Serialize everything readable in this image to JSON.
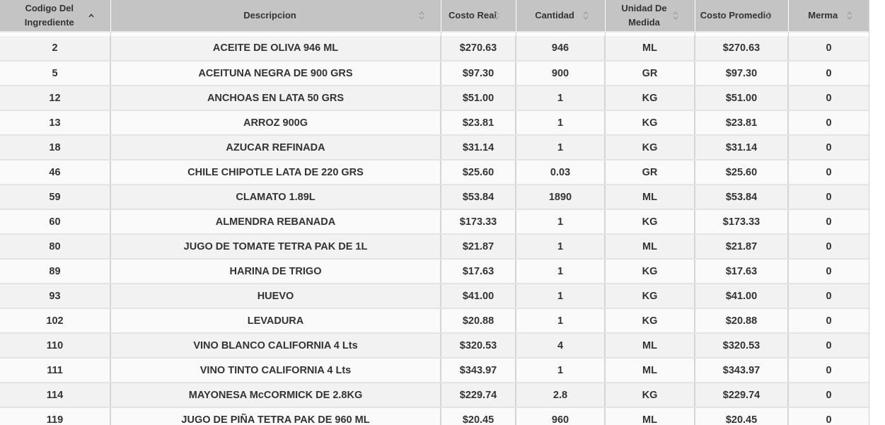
{
  "table": {
    "headers": [
      {
        "label": "Codigo Del Ingrediente",
        "sort": "asc"
      },
      {
        "label": "Descripcion",
        "sort": "none"
      },
      {
        "label": "Costo Real",
        "sort": "none"
      },
      {
        "label": "Cantidad",
        "sort": "none"
      },
      {
        "label": "Unidad De Medida",
        "sort": "none"
      },
      {
        "label": "Costo Promedio",
        "sort": "none"
      },
      {
        "label": "Merma",
        "sort": "none"
      }
    ],
    "rows": [
      [
        "2",
        "ACEITE DE OLIVA 946 ML",
        "$270.63",
        "946",
        "ML",
        "$270.63",
        "0"
      ],
      [
        "5",
        "ACEITUNA NEGRA DE 900 GRS",
        "$97.30",
        "900",
        "GR",
        "$97.30",
        "0"
      ],
      [
        "12",
        "ANCHOAS EN LATA 50 GRS",
        "$51.00",
        "1",
        "KG",
        "$51.00",
        "0"
      ],
      [
        "13",
        "ARROZ 900G",
        "$23.81",
        "1",
        "KG",
        "$23.81",
        "0"
      ],
      [
        "18",
        "AZUCAR REFINADA",
        "$31.14",
        "1",
        "KG",
        "$31.14",
        "0"
      ],
      [
        "46",
        "CHILE CHIPOTLE LATA DE 220 GRS",
        "$25.60",
        "0.03",
        "GR",
        "$25.60",
        "0"
      ],
      [
        "59",
        "CLAMATO 1.89L",
        "$53.84",
        "1890",
        "ML",
        "$53.84",
        "0"
      ],
      [
        "60",
        "ALMENDRA REBANADA",
        "$173.33",
        "1",
        "KG",
        "$173.33",
        "0"
      ],
      [
        "80",
        "JUGO DE TOMATE TETRA PAK DE 1L",
        "$21.87",
        "1",
        "ML",
        "$21.87",
        "0"
      ],
      [
        "89",
        "HARINA DE TRIGO",
        "$17.63",
        "1",
        "KG",
        "$17.63",
        "0"
      ],
      [
        "93",
        "HUEVO",
        "$41.00",
        "1",
        "KG",
        "$41.00",
        "0"
      ],
      [
        "102",
        "LEVADURA",
        "$20.88",
        "1",
        "KG",
        "$20.88",
        "0"
      ],
      [
        "110",
        "VINO BLANCO CALIFORNIA 4 Lts",
        "$320.53",
        "4",
        "ML",
        "$320.53",
        "0"
      ],
      [
        "111",
        "VINO TINTO CALIFORNIA 4 Lts",
        "$343.97",
        "1",
        "ML",
        "$343.97",
        "0"
      ],
      [
        "114",
        "MAYONESA McCORMICK DE 2.8KG",
        "$229.74",
        "2.8",
        "KG",
        "$229.74",
        "0"
      ],
      [
        "119",
        "JUGO DE PIÑA TETRA PAK DE 960 ML",
        "$20.45",
        "960",
        "ML",
        "$20.45",
        "0"
      ]
    ]
  }
}
